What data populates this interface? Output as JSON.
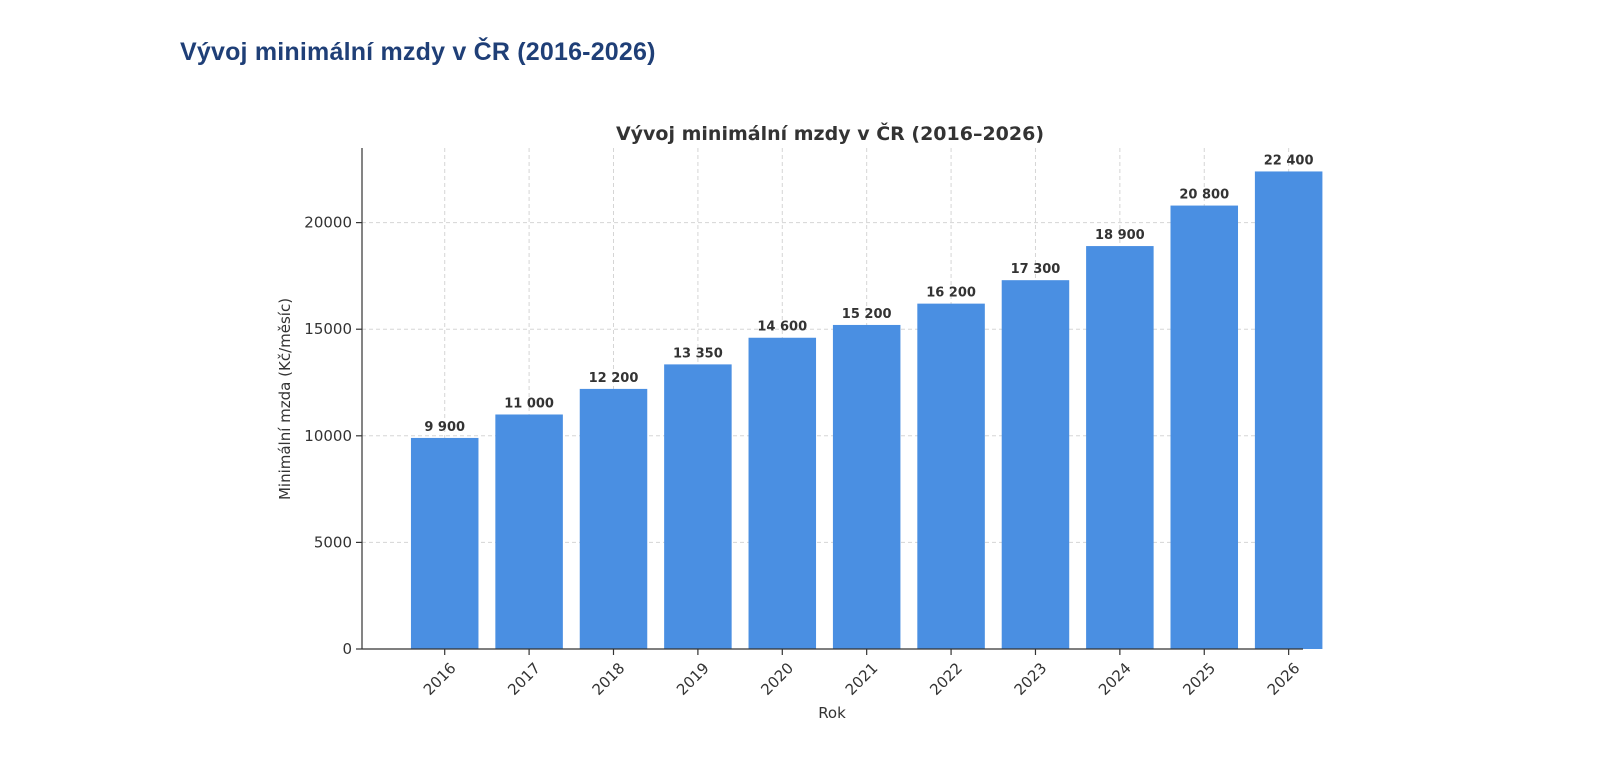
{
  "page": {
    "heading": "Vývoj minimální mzdy v ČR (2016-2026)"
  },
  "colors": {
    "heading": "#1f3f77",
    "bar": "#4a8fe2",
    "text": "#333333",
    "grid": "#d5d5d5"
  },
  "chart_data": {
    "type": "bar",
    "title": "Vývoj minimální mzdy v ČR (2016–2026)",
    "xlabel": "Rok",
    "ylabel": "Minimální mzda (Kč/měsíc)",
    "categories": [
      "2016",
      "2017",
      "2018",
      "2019",
      "2020",
      "2021",
      "2022",
      "2023",
      "2024",
      "2025",
      "2026"
    ],
    "values": [
      9900,
      11000,
      12200,
      13350,
      14600,
      15200,
      16200,
      17300,
      18900,
      20800,
      22400
    ],
    "value_labels": [
      "9 900",
      "11 000",
      "12 200",
      "13 350",
      "14 600",
      "15 200",
      "16 200",
      "17 300",
      "18 900",
      "20 800",
      "22 400"
    ],
    "yticks": [
      0,
      5000,
      10000,
      15000,
      20000
    ],
    "ylim": [
      0,
      23500
    ],
    "grid": true,
    "legend": "none"
  }
}
